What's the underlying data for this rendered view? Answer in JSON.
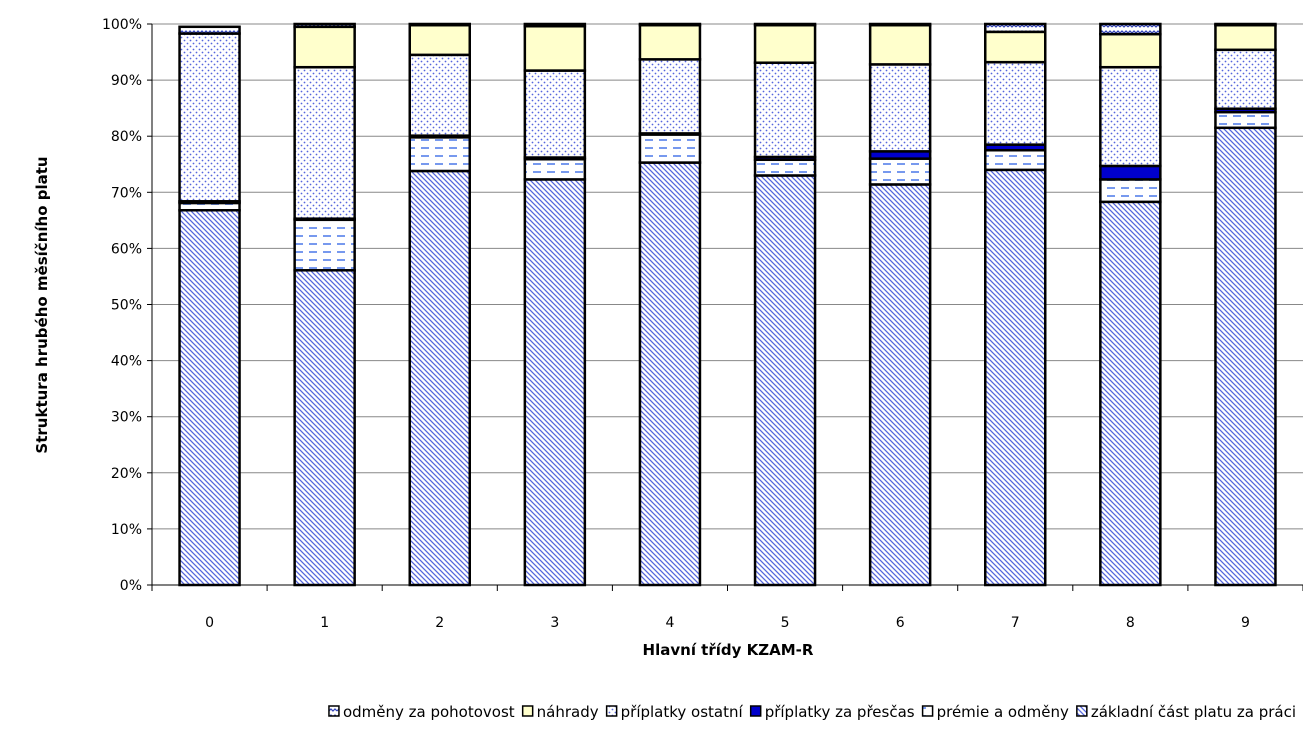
{
  "chart_data": {
    "type": "bar",
    "stacked": true,
    "xlabel": "Hlavní třídy KZAM-R",
    "ylabel": "Struktura hrubého měsíčního platu",
    "y_tick_labels": [
      "0%",
      "10%",
      "20%",
      "30%",
      "40%",
      "50%",
      "60%",
      "70%",
      "80%",
      "90%",
      "100%"
    ],
    "ylim": [
      0,
      100
    ],
    "categories": [
      "0",
      "1",
      "2",
      "3",
      "4",
      "5",
      "6",
      "7",
      "8",
      "9"
    ],
    "legend_position": "bottom",
    "series": [
      {
        "name": "základní část platu za práci",
        "fill": "diag",
        "values": [
          66.8,
          56.1,
          73.8,
          72.3,
          75.3,
          73.0,
          71.4,
          74.0,
          68.3,
          81.5
        ]
      },
      {
        "name": "prémie a odměny",
        "fill": "dash",
        "values": [
          1.3,
          9.0,
          6.0,
          3.6,
          5.0,
          2.8,
          4.6,
          3.5,
          4.0,
          2.8
        ]
      },
      {
        "name": "příplatky  za přesčas",
        "fill": "solid",
        "values": [
          0.3,
          0.2,
          0.3,
          0.3,
          0.2,
          0.5,
          1.3,
          1.0,
          2.4,
          0.6
        ]
      },
      {
        "name": "příplatky ostatní",
        "fill": "dots",
        "values": [
          29.9,
          27.0,
          14.4,
          15.5,
          13.2,
          16.8,
          15.5,
          14.7,
          17.6,
          10.5
        ]
      },
      {
        "name": "náhrady",
        "fill": "plain",
        "values": [
          0.0,
          7.2,
          5.3,
          7.9,
          6.1,
          6.7,
          7.0,
          5.4,
          5.9,
          4.4
        ]
      },
      {
        "name": "odměny za pohotovost",
        "fill": "wave",
        "values": [
          1.2,
          0.5,
          0.2,
          0.4,
          0.2,
          0.2,
          0.2,
          1.4,
          1.8,
          0.2
        ]
      }
    ],
    "legend_order": [
      "odměny za pohotovost",
      "náhrady",
      "příplatky ostatní",
      "příplatky  za přesčas",
      "prémie a odměny",
      "základní část platu za práci"
    ],
    "colors": {
      "basic": "#5566dd",
      "bonus_dash": "#7799ee",
      "overtime": "#0000cc",
      "dots": "#5566dd",
      "substitutions": "#ffffcc",
      "standby": "#3344bb",
      "outline": "#000000",
      "grid": "#888888"
    }
  }
}
